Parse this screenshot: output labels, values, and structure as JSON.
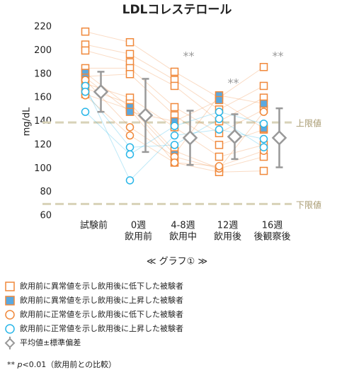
{
  "chart_data": {
    "type": "scatter",
    "title": "LDLコレステロール",
    "y_label": "mg/dL",
    "categories": [
      [
        "試験前"
      ],
      [
        "0週",
        "飲用前"
      ],
      [
        "4-8週",
        "飲用中"
      ],
      [
        "12週",
        "飲用後"
      ],
      [
        "16週",
        "後観察後"
      ]
    ],
    "ylim": [
      60,
      220
    ],
    "yticks": [
      60,
      80,
      100,
      120,
      140,
      160,
      180,
      200,
      220
    ],
    "reference_lines": [
      {
        "value": 139,
        "label": "上限値"
      },
      {
        "value": 70,
        "label": "下限値"
      }
    ],
    "groups": [
      {
        "name": "飲用前に異常値を示し飲用後に低下した被験者",
        "marker": "square",
        "color": "#f0883a",
        "fill": "#ffffff"
      },
      {
        "name": "飲用前に異常値を示し飲用後に上昇した被験者",
        "marker": "square",
        "color": "#f0883a",
        "fill": "#5aa9e0"
      },
      {
        "name": "飲用前に正常値を示し飲用後に低下した被験者",
        "marker": "circle",
        "color": "#f0883a",
        "fill": "#ffffff"
      },
      {
        "name": "飲用前に正常値を示し飲用後に上昇した被験者",
        "marker": "circle",
        "color": "#29b6e8",
        "fill": "#ffffff"
      }
    ],
    "subjects": [
      {
        "group": 0,
        "values": [
          216,
          207,
          182,
          160,
          186
        ]
      },
      {
        "group": 0,
        "values": [
          205,
          197,
          175,
          150,
          170
        ]
      },
      {
        "group": 0,
        "values": [
          200,
          190,
          170,
          140,
          160
        ]
      },
      {
        "group": 0,
        "values": [
          185,
          185,
          152,
          130,
          150
        ]
      },
      {
        "group": 0,
        "values": [
          178,
          180,
          145,
          120,
          133
        ]
      },
      {
        "group": 0,
        "values": [
          172,
          160,
          135,
          110,
          120
        ]
      },
      {
        "group": 0,
        "values": [
          168,
          155,
          115,
          100,
          110
        ]
      },
      {
        "group": 0,
        "values": [
          163,
          150,
          105,
          97,
          98
        ]
      },
      {
        "group": 1,
        "values": [
          181,
          152,
          112,
          162,
          155
        ]
      },
      {
        "group": 1,
        "values": [
          177,
          148,
          140,
          158,
          134
        ]
      },
      {
        "group": 2,
        "values": [
          175,
          135,
          110,
          100,
          148
        ]
      },
      {
        "group": 2,
        "values": [
          162,
          128,
          105,
          102,
          115
        ]
      },
      {
        "group": 3,
        "values": [
          148,
          112,
          136,
          148,
          138
        ]
      },
      {
        "group": 3,
        "values": [
          170,
          90,
          128,
          133,
          125
        ]
      },
      {
        "group": 3,
        "values": [
          165,
          118,
          120,
          142,
          118
        ]
      }
    ],
    "mean": {
      "name": "平均値±標準偏差",
      "color": "#999999",
      "values": [
        165,
        145,
        126,
        127,
        126
      ],
      "sd": [
        17,
        31,
        23,
        19,
        25
      ]
    },
    "significance": [
      "",
      "",
      "**",
      "**",
      "**"
    ],
    "caption": "≪ グラフ① ≫",
    "footnote": {
      "stars": "**",
      "p": "p",
      "text": "<0.01（飲用前との比較）"
    }
  }
}
